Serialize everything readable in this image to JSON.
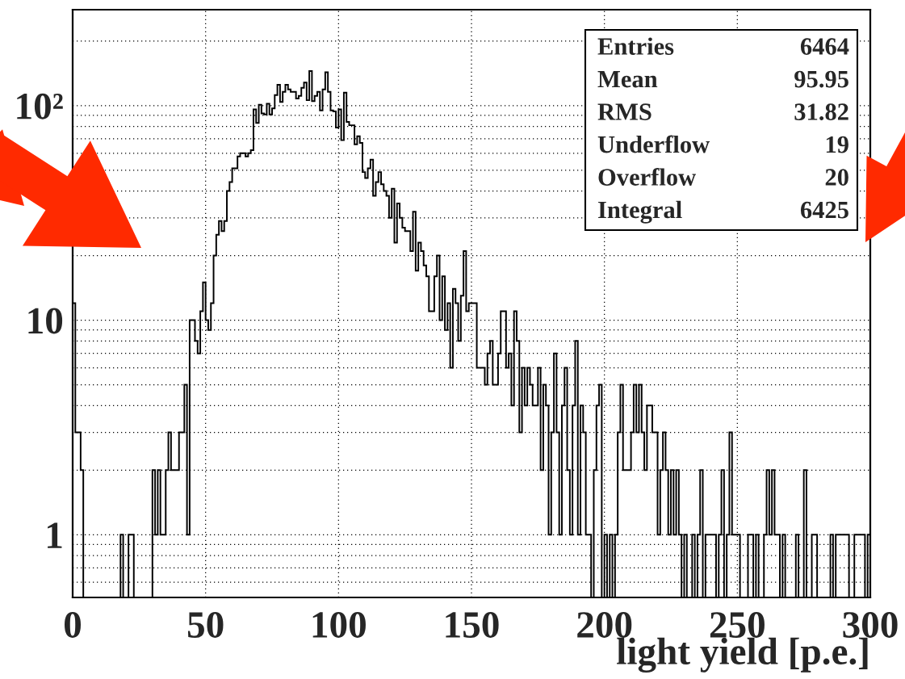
{
  "chart_data": {
    "type": "histogram",
    "xlabel": "light yield [p.e.]",
    "bins": [
      0,
      1,
      2,
      3,
      4,
      5,
      6,
      7,
      8,
      9,
      10,
      11,
      12,
      13,
      14,
      15,
      16,
      17,
      18,
      19,
      20,
      21,
      22,
      23,
      24,
      25,
      26,
      27,
      28,
      29,
      30,
      31,
      32,
      33,
      34,
      35,
      36,
      37,
      38,
      39,
      40,
      41,
      42,
      43,
      44,
      45,
      46,
      47,
      48,
      49,
      50,
      51,
      52,
      53,
      54,
      55,
      56,
      57,
      58,
      59,
      60,
      61,
      62,
      63,
      64,
      65,
      66,
      67,
      68,
      69,
      70,
      71,
      72,
      73,
      74,
      75,
      76,
      77,
      78,
      79,
      80,
      81,
      82,
      83,
      84,
      85,
      86,
      87,
      88,
      89,
      90,
      91,
      92,
      93,
      94,
      95,
      96,
      97,
      98,
      99,
      100,
      101,
      102,
      103,
      104,
      105,
      106,
      107,
      108,
      109,
      110,
      111,
      112,
      113,
      114,
      115,
      116,
      117,
      118,
      119,
      120,
      121,
      122,
      123,
      124,
      125,
      126,
      127,
      128,
      129,
      130,
      131,
      132,
      133,
      134,
      135,
      136,
      137,
      138,
      139,
      140,
      141,
      142,
      143,
      144,
      145,
      146,
      147,
      148,
      149,
      150,
      151,
      152,
      153,
      154,
      155,
      156,
      157,
      158,
      159,
      160,
      161,
      162,
      163,
      164,
      165,
      166,
      167,
      168,
      169,
      170,
      171,
      172,
      173,
      174,
      175,
      176,
      177,
      178,
      179,
      180,
      181,
      182,
      183,
      184,
      185,
      186,
      187,
      188,
      189,
      190,
      191,
      192,
      193,
      194,
      195,
      196,
      197,
      198,
      199,
      200,
      201,
      202,
      203,
      204,
      205,
      206,
      207,
      208,
      209,
      210,
      211,
      212,
      213,
      214,
      215,
      216,
      217,
      218,
      219,
      220,
      221,
      222,
      223,
      224,
      225,
      226,
      227,
      228,
      229,
      230,
      231,
      232,
      233,
      234,
      235,
      236,
      237,
      238,
      239,
      240,
      241,
      242,
      243,
      244,
      245,
      246,
      247,
      248,
      249,
      250,
      251,
      252,
      253,
      254,
      255,
      256,
      257,
      258,
      259,
      260,
      261,
      262,
      263,
      264,
      265,
      266,
      267,
      268,
      269,
      270,
      271,
      272,
      273,
      274,
      275,
      276,
      277,
      278,
      279,
      280,
      281,
      282,
      283,
      284,
      285,
      286,
      287,
      288,
      289,
      290,
      291,
      292,
      293,
      294,
      295,
      296,
      297,
      298,
      299,
      300
    ],
    "values": [
      12,
      3,
      3,
      2,
      null,
      null,
      null,
      null,
      null,
      null,
      null,
      null,
      null,
      null,
      null,
      null,
      null,
      null,
      1,
      null,
      null,
      1,
      1,
      null,
      null,
      null,
      null,
      null,
      null,
      null,
      2,
      1,
      2,
      1,
      1,
      2,
      3,
      2,
      2,
      2,
      3,
      3,
      5,
      1,
      10,
      10,
      8,
      7,
      11,
      15,
      10,
      9,
      12,
      20,
      25,
      29,
      26,
      29,
      40,
      44,
      51,
      51,
      58,
      60,
      60,
      58,
      60,
      62,
      96,
      83,
      101,
      92,
      91,
      102,
      91,
      97,
      112,
      125,
      104,
      116,
      125,
      119,
      116,
      116,
      108,
      111,
      121,
      128,
      106,
      145,
      105,
      111,
      116,
      95,
      119,
      143,
      116,
      95,
      94,
      79,
      96,
      69,
      115,
      84,
      81,
      81,
      66,
      72,
      67,
      49,
      46,
      51,
      56,
      38,
      44,
      49,
      43,
      40,
      38,
      30,
      41,
      23,
      35,
      30,
      27,
      26,
      26,
      21,
      32,
      17,
      23,
      21,
      18,
      16,
      11,
      11,
      16,
      20,
      10,
      16,
      9,
      12,
      6,
      14,
      12,
      8,
      13,
      21,
      11,
      12,
      12,
      12,
      6,
      6,
      6,
      5,
      7,
      8,
      5,
      5,
      7,
      11,
      11,
      6,
      7,
      4,
      11,
      8,
      3,
      6,
      4,
      6,
      5,
      4,
      4,
      6,
      2,
      5,
      4,
      1,
      3,
      7,
      3,
      1,
      4,
      6,
      2,
      1,
      4,
      8,
      1,
      4,
      3,
      1,
      1,
      null,
      2,
      4,
      5,
      null,
      1,
      null,
      1,
      null,
      1,
      3,
      5,
      2,
      2,
      2,
      3,
      5,
      3,
      5,
      3,
      2,
      4,
      4,
      3,
      3,
      1,
      2,
      3,
      2,
      1,
      2,
      1,
      2,
      1,
      null,
      1,
      null,
      null,
      1,
      null,
      1,
      2,
      null,
      1,
      1,
      1,
      1,
      null,
      1,
      2,
      null,
      1,
      3,
      1,
      1,
      1,
      null,
      null,
      null,
      1,
      1,
      null,
      1,
      null,
      null,
      1,
      2,
      1,
      2,
      1,
      1,
      null,
      1,
      null,
      null,
      null,
      null,
      1,
      null,
      null,
      2,
      null,
      null,
      1,
      1,
      null,
      null,
      null,
      null,
      null,
      1,
      null,
      1,
      1,
      1,
      1,
      1,
      null,
      null,
      1,
      1,
      1,
      1,
      null,
      1
    ],
    "color": "#000000",
    "xlim": [
      0,
      300
    ],
    "xticks": [
      0,
      50,
      100,
      150,
      200,
      250,
      300
    ],
    "ylim": [
      0.51,
      280
    ],
    "yticks": [
      1,
      10,
      {
        "value": 100,
        "label": "10²"
      }
    ],
    "log": "y",
    "grid": true,
    "annotations": [
      "Entries 6464",
      "Mean 95.95",
      "RMS 31.82",
      "Underflow 19",
      "Overflow 20",
      "Integral 6425"
    ]
  }
}
